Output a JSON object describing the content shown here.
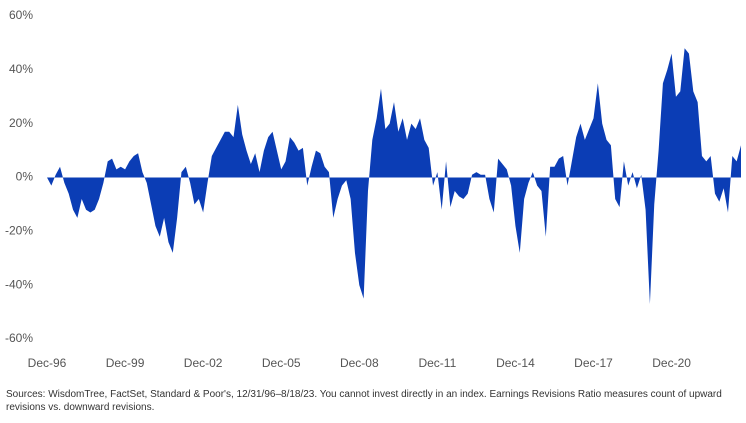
{
  "chart_data": {
    "type": "area",
    "color": "#0b3db5",
    "categories": [
      "Dec-96",
      null,
      null,
      null,
      null,
      null,
      null,
      null,
      null,
      null,
      null,
      null,
      null,
      null,
      null,
      null,
      null,
      null,
      "Dec-99",
      null,
      null,
      null,
      null,
      null,
      null,
      null,
      null,
      null,
      null,
      null,
      null,
      null,
      null,
      null,
      null,
      null,
      "Dec-02",
      null,
      null,
      null,
      null,
      null,
      null,
      null,
      null,
      null,
      null,
      null,
      null,
      null,
      null,
      null,
      null,
      null,
      "Dec-05",
      null,
      null,
      null,
      null,
      null,
      null,
      null,
      null,
      null,
      null,
      null,
      null,
      null,
      null,
      null,
      null,
      null,
      "Dec-08",
      null,
      null,
      null,
      null,
      null,
      null,
      null,
      null,
      null,
      null,
      null,
      null,
      null,
      null,
      null,
      null,
      null,
      "Dec-11",
      null,
      null,
      null,
      null,
      null,
      null,
      null,
      null,
      null,
      null,
      null,
      null,
      null,
      null,
      null,
      null,
      null,
      "Dec-14",
      null,
      null,
      null,
      null,
      null,
      null,
      null,
      null,
      null,
      null,
      null,
      null,
      null,
      null,
      null,
      null,
      null,
      "Dec-17",
      null,
      null,
      null,
      null,
      null,
      null,
      null,
      null,
      null,
      null,
      null,
      null,
      null,
      null,
      null,
      null,
      null,
      "Dec-20",
      null,
      null,
      null,
      null,
      null,
      null,
      null,
      null,
      null,
      null,
      null,
      null,
      null,
      null,
      null,
      null
    ],
    "values": [
      0,
      -3,
      1,
      4,
      -2,
      -6,
      -12,
      -15,
      -8,
      -12,
      -13,
      -12,
      -8,
      -2,
      6,
      7,
      3,
      4,
      3,
      6,
      8,
      9,
      2,
      -2,
      -10,
      -18,
      -22,
      -15,
      -24,
      -28,
      -15,
      2,
      4,
      -2,
      -10,
      -8,
      -13,
      -2,
      8,
      11,
      14,
      17,
      17,
      15,
      27,
      16,
      10,
      5,
      9,
      2,
      10,
      15,
      17,
      10,
      3,
      6,
      15,
      13,
      10,
      11,
      -3,
      4,
      10,
      9,
      4,
      2,
      -15,
      -8,
      -3,
      -1,
      -8,
      -28,
      -40,
      -45,
      -5,
      14,
      22,
      33,
      18,
      20,
      28,
      17,
      22,
      14,
      20,
      18,
      22,
      14,
      11,
      -3,
      2,
      -12,
      6,
      -11,
      -5,
      -7,
      -8,
      -6,
      1,
      2,
      1,
      1,
      -8,
      -13,
      7,
      5,
      3,
      -3,
      -18,
      -28,
      -8,
      -2,
      2,
      -3,
      -5,
      -22,
      4,
      4,
      7,
      8,
      -3,
      6,
      15,
      20,
      14,
      18,
      22,
      35,
      20,
      14,
      12,
      -8,
      -11,
      6,
      -3,
      2,
      -4,
      1,
      -12,
      -47,
      -10,
      10,
      35,
      40,
      46,
      30,
      32,
      48,
      46,
      32,
      28,
      8,
      6,
      8,
      -6,
      -9,
      -4,
      -13,
      8,
      6,
      12
    ],
    "ylim": [
      -60,
      60
    ],
    "yticks": [
      {
        "value": -60,
        "label": "-60%"
      },
      {
        "value": -40,
        "label": "-40%"
      },
      {
        "value": -20,
        "label": "-20%"
      },
      {
        "value": 0,
        "label": "0%"
      },
      {
        "value": 20,
        "label": "20%"
      },
      {
        "value": 40,
        "label": "40%"
      },
      {
        "value": 60,
        "label": "60%"
      }
    ],
    "footnote": "Sources: WisdomTree, FactSet, Standard & Poor's, 12/31/96–8/18/23. You cannot invest directly in an index. Earnings Revisions Ratio measures count of upward revisions vs. downward revisions."
  }
}
